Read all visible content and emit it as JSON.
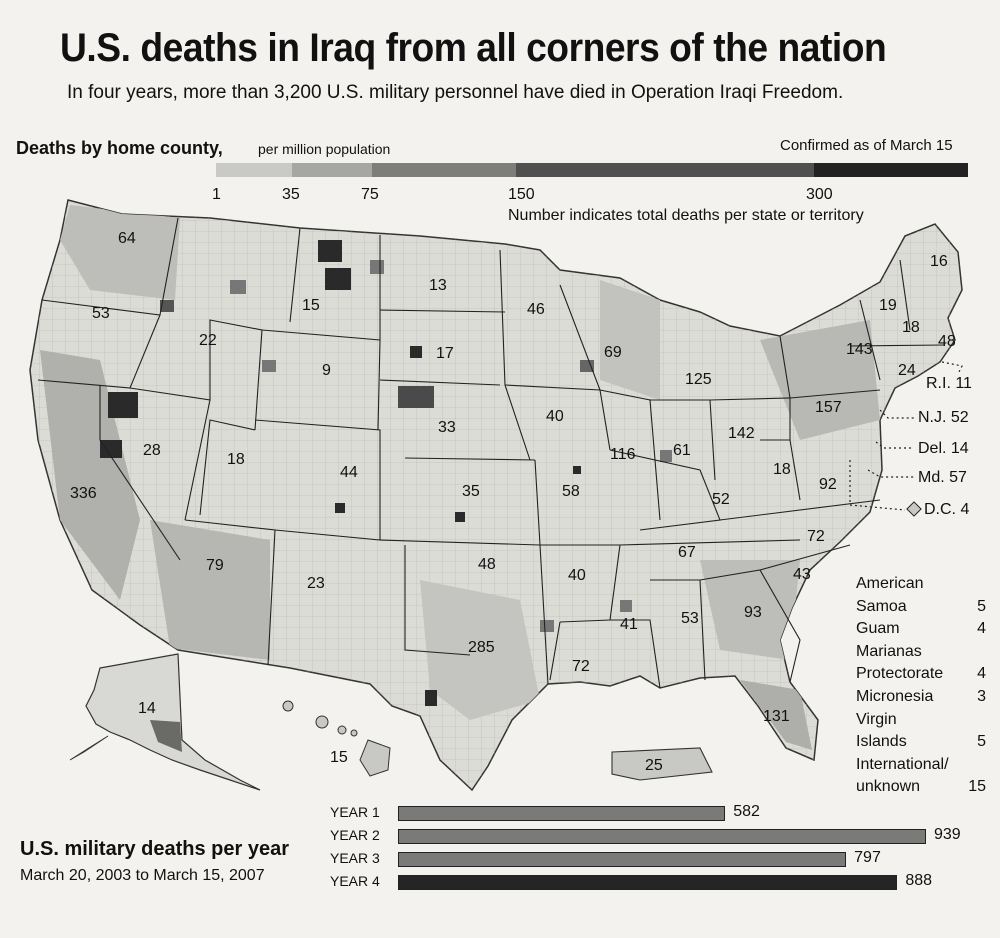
{
  "header": {
    "title": "U.S. deaths in Iraq from all corners of the nation",
    "subtitle": "In four years, more than 3,200 U.S. military personnel have died in Operation Iraqi Freedom."
  },
  "legend": {
    "title": "Deaths by home county,",
    "unit": "per million population",
    "confirmed": "Confirmed as of March 15",
    "ticks": [
      "1",
      "35",
      "75",
      "150",
      "300"
    ],
    "colors": [
      "#c9c9c5",
      "#a6a6a2",
      "#7d7d79",
      "#505050",
      "#222222"
    ],
    "note": "Number indicates total deaths per state or territory"
  },
  "states": [
    {
      "abbr": "WA",
      "value": "64"
    },
    {
      "abbr": "OR",
      "value": "53"
    },
    {
      "abbr": "ID",
      "value": "22"
    },
    {
      "abbr": "MT",
      "value": "15"
    },
    {
      "abbr": "WY",
      "value": "9"
    },
    {
      "abbr": "NV",
      "value": "28"
    },
    {
      "abbr": "CA",
      "value": "336"
    },
    {
      "abbr": "UT",
      "value": "18"
    },
    {
      "abbr": "AZ",
      "value": "79"
    },
    {
      "abbr": "CO",
      "value": "44"
    },
    {
      "abbr": "NM",
      "value": "23"
    },
    {
      "abbr": "ND",
      "value": "13"
    },
    {
      "abbr": "SD",
      "value": "17"
    },
    {
      "abbr": "NE",
      "value": "33"
    },
    {
      "abbr": "KS",
      "value": "35"
    },
    {
      "abbr": "OK",
      "value": "48"
    },
    {
      "abbr": "TX",
      "value": "285"
    },
    {
      "abbr": "MN",
      "value": "46"
    },
    {
      "abbr": "IA",
      "value": "40"
    },
    {
      "abbr": "MO",
      "value": "58"
    },
    {
      "abbr": "AR",
      "value": "40"
    },
    {
      "abbr": "LA",
      "value": "72"
    },
    {
      "abbr": "WI",
      "value": "69"
    },
    {
      "abbr": "IL",
      "value": "116"
    },
    {
      "abbr": "MI",
      "value": "125"
    },
    {
      "abbr": "IN",
      "value": "61"
    },
    {
      "abbr": "KY",
      "value": "52"
    },
    {
      "abbr": "TN",
      "value": "67"
    },
    {
      "abbr": "MS",
      "value": "41"
    },
    {
      "abbr": "AL",
      "value": "53"
    },
    {
      "abbr": "GA",
      "value": "93"
    },
    {
      "abbr": "FL",
      "value": "131"
    },
    {
      "abbr": "SC",
      "value": "43"
    },
    {
      "abbr": "NC",
      "value": "72"
    },
    {
      "abbr": "VA",
      "value": "92"
    },
    {
      "abbr": "WV",
      "value": "18"
    },
    {
      "abbr": "OH",
      "value": "142"
    },
    {
      "abbr": "PA",
      "value": "157"
    },
    {
      "abbr": "NY",
      "value": "143"
    },
    {
      "abbr": "VT",
      "value": "19"
    },
    {
      "abbr": "NH",
      "value": "18"
    },
    {
      "abbr": "ME",
      "value": "16"
    },
    {
      "abbr": "MA",
      "value": "48"
    },
    {
      "abbr": "CT",
      "value": "24"
    },
    {
      "abbr": "AK",
      "value": "14"
    },
    {
      "abbr": "HI",
      "value": "15"
    },
    {
      "abbr": "PR",
      "value": "25"
    }
  ],
  "side_labels": [
    {
      "name": "R.I.",
      "value": "11"
    },
    {
      "name": "N.J.",
      "value": "52"
    },
    {
      "name": "Del.",
      "value": "14"
    },
    {
      "name": "Md.",
      "value": "57"
    },
    {
      "name": "D.C.",
      "value": "4"
    }
  ],
  "territories": [
    {
      "lines": [
        "American"
      ],
      "value": ""
    },
    {
      "lines": [
        "Samoa"
      ],
      "value": "5"
    },
    {
      "lines": [
        "Guam"
      ],
      "value": "4"
    },
    {
      "lines": [
        "Marianas"
      ],
      "value": ""
    },
    {
      "lines": [
        "Protectorate"
      ],
      "value": "4"
    },
    {
      "lines": [
        "Micronesia"
      ],
      "value": "3"
    },
    {
      "lines": [
        "Virgin"
      ],
      "value": ""
    },
    {
      "lines": [
        "Islands"
      ],
      "value": "5"
    },
    {
      "lines": [
        "International/"
      ],
      "value": ""
    },
    {
      "lines": [
        "unknown"
      ],
      "value": "15"
    }
  ],
  "yearly": {
    "title": "U.S. military deaths per year",
    "range": "March 20, 2003 to March 15, 2007"
  },
  "chart_data": {
    "type": "bar",
    "title": "U.S. military deaths per year",
    "categories": [
      "YEAR 1",
      "YEAR 2",
      "YEAR 3",
      "YEAR 4"
    ],
    "values": [
      582,
      939,
      797,
      888
    ],
    "colors": [
      "#7a7a78",
      "#7a7a78",
      "#7a7a78",
      "#252525"
    ]
  }
}
